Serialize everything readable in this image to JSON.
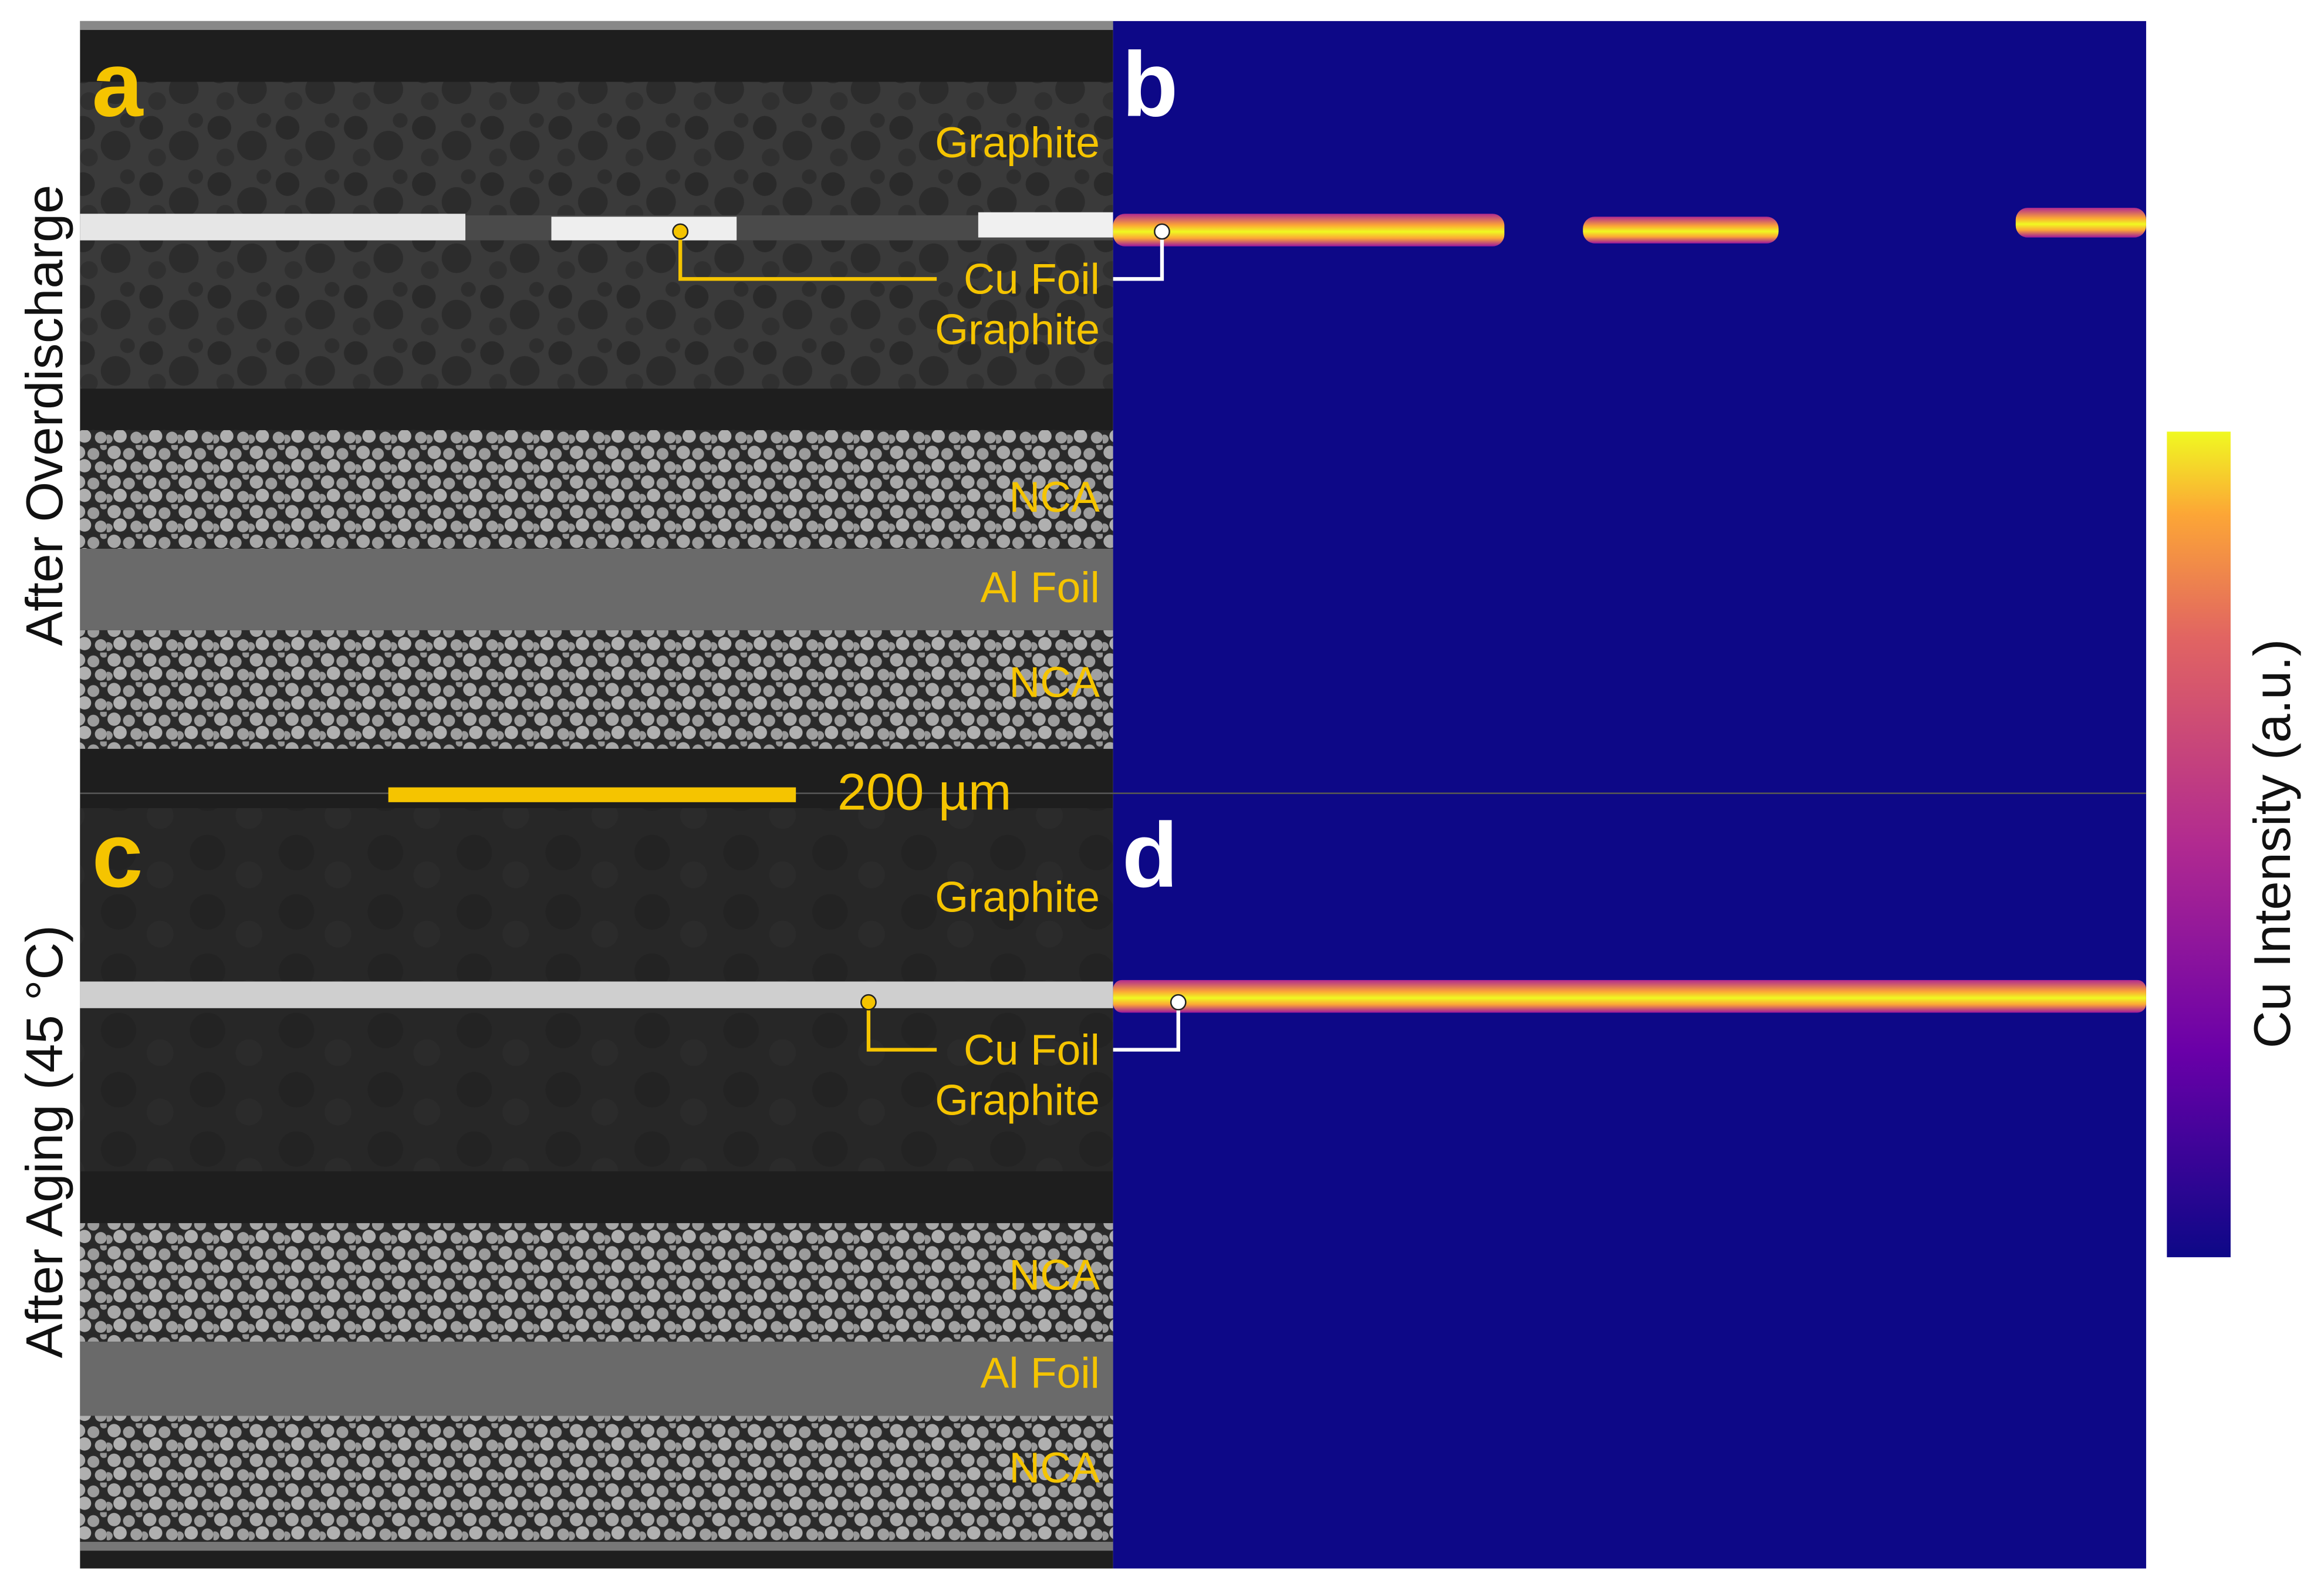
{
  "rows": [
    {
      "label": "After Overdischarge",
      "sem_panel": "a",
      "map_panel": "b",
      "layers": [
        "Graphite",
        "Cu Foil",
        "Graphite",
        "NCA",
        "Al Foil",
        "NCA"
      ]
    },
    {
      "label": "After Aging (45 °C)",
      "sem_panel": "c",
      "map_panel": "d",
      "layers": [
        "Graphite",
        "Cu Foil",
        "Graphite",
        "NCA",
        "Al Foil",
        "NCA"
      ]
    }
  ],
  "scale_bar": "200 µm",
  "colorbar_label": "Cu Intensity (a.u.)"
}
